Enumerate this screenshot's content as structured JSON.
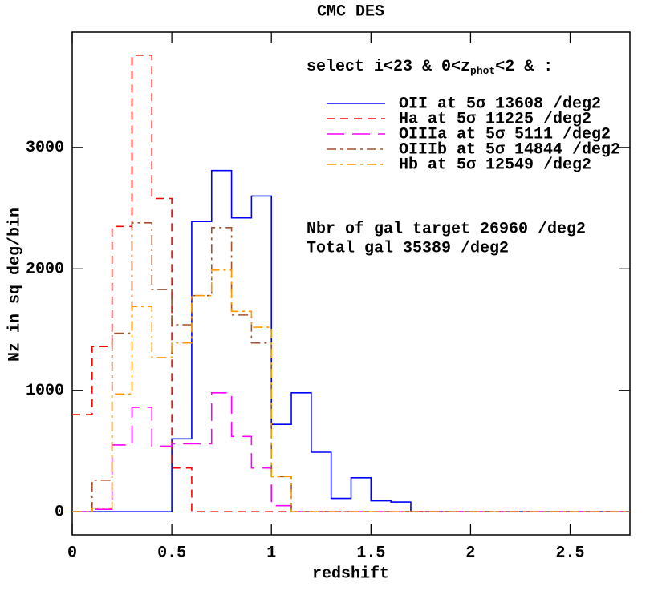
{
  "chart_data": {
    "type": "histogram",
    "title": "CMC DES",
    "xlabel": "redshift",
    "ylabel": "Nz in sq deg/bin",
    "bins": [
      0,
      0.1,
      0.2,
      0.3,
      0.4,
      0.5,
      0.6,
      0.7,
      0.8,
      0.9,
      1.0,
      1.1,
      1.2,
      1.3,
      1.4,
      1.5,
      1.6,
      1.7,
      1.8,
      1.9,
      2.0,
      2.1,
      2.2,
      2.3,
      2.4,
      2.5,
      2.6,
      2.7,
      2.8
    ],
    "series": [
      {
        "name": "OII at 5σ 13608 /deg2",
        "color": "#0000ff",
        "linestyle": "solid",
        "values": [
          0,
          0,
          0,
          0,
          0,
          600,
          2390,
          2810,
          2420,
          2600,
          720,
          980,
          490,
          110,
          280,
          90,
          80,
          0,
          0,
          0,
          0,
          0,
          0,
          0,
          0,
          0,
          0,
          0
        ]
      },
      {
        "name": "Ha at 5σ 11225 /deg2",
        "color": "#ff0000",
        "linestyle": "dashed",
        "values": [
          800,
          1360,
          2350,
          3760,
          2580,
          360,
          0,
          0,
          0,
          0,
          0,
          0,
          0,
          0,
          0,
          0,
          0,
          0,
          0,
          0,
          0,
          0,
          0,
          0,
          0,
          0,
          0,
          0
        ]
      },
      {
        "name": "OIIIa at 5σ 5111 /deg2",
        "color": "#ff00ff",
        "linestyle": "longdash",
        "values": [
          0,
          20,
          550,
          860,
          540,
          560,
          560,
          980,
          620,
          360,
          50,
          0,
          0,
          0,
          0,
          0,
          0,
          0,
          0,
          0,
          0,
          0,
          0,
          0,
          0,
          0,
          0,
          0
        ]
      },
      {
        "name": "OIIIb at 5σ 14844 /deg2",
        "color": "#a0522d",
        "linestyle": "dashdot",
        "values": [
          0,
          260,
          1470,
          2380,
          1830,
          1540,
          1780,
          2340,
          1620,
          1390,
          290,
          0,
          0,
          0,
          0,
          0,
          0,
          0,
          0,
          0,
          0,
          0,
          0,
          0,
          0,
          0,
          0,
          0
        ]
      },
      {
        "name": "Hb at 5σ 12549 /deg2",
        "color": "#ff9900",
        "linestyle": "dashdot",
        "values": [
          0,
          30,
          970,
          1690,
          1270,
          1390,
          1780,
          1990,
          1650,
          1520,
          290,
          0,
          0,
          0,
          0,
          0,
          0,
          0,
          0,
          0,
          0,
          0,
          0,
          0,
          0,
          0,
          0,
          0
        ]
      }
    ],
    "annotations": {
      "selection": [
        "select i<23 & 0<z",
        "phot",
        "<2 & :"
      ],
      "target": "Nbr of gal target 26960 /deg2",
      "total": "Total gal 35389 /deg2"
    },
    "xlim": [
      0,
      2.8
    ],
    "ylim": [
      -190,
      3950
    ],
    "xticks": [
      0,
      0.5,
      1,
      1.5,
      2,
      2.5
    ],
    "yticks": [
      0,
      1000,
      2000,
      3000
    ],
    "legend": "upper right",
    "grid": false
  }
}
